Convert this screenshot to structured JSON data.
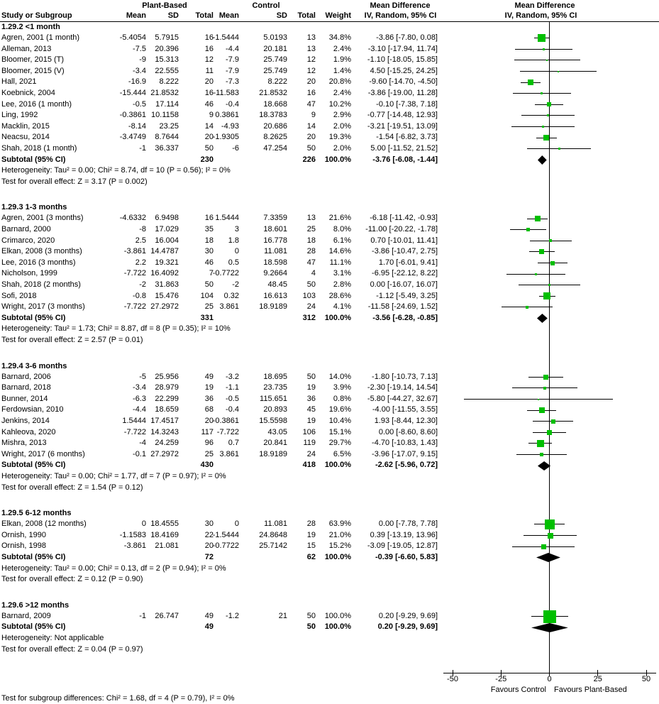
{
  "header": {
    "plant_based": "Plant-Based",
    "control": "Control",
    "mean_difference": "Mean Difference",
    "study_or_subgroup": "Study or Subgroup",
    "mean": "Mean",
    "sd": "SD",
    "total": "Total",
    "weight": "Weight",
    "method": "IV, Random, 95% CI"
  },
  "colors": {
    "marker": "#00bf00",
    "diamond": "#000000",
    "line": "#000000"
  },
  "chart_data": {
    "type": "forest",
    "effect_label": "Mean Difference",
    "method_label": "IV, Random, 95% CI",
    "axis": {
      "min": -50,
      "max": 50,
      "ticks": [
        -50,
        -25,
        0,
        25,
        50
      ],
      "favours_left": "Favours Control",
      "favours_right": "Favours Plant-Based"
    },
    "subgroup_difference_test": "Test for subgroup differences: Chi² = 1.68, df = 4 (P = 0.79), I² = 0%",
    "groups": [
      {
        "label": "1.29.2 <1 month",
        "studies": [
          {
            "study": "Agren, 2001 (1 month)",
            "mean1": "-5.4054",
            "sd1": "5.7915",
            "total1": "16",
            "mean2": "-1.5444",
            "sd2": "5.0193",
            "total2": "13",
            "weight_pct": 34.8,
            "est": -3.86,
            "lo": -7.8,
            "hi": 0.08
          },
          {
            "study": "Alleman, 2013",
            "mean1": "-7.5",
            "sd1": "20.396",
            "total1": "16",
            "mean2": "-4.4",
            "sd2": "20.181",
            "total2": "13",
            "weight_pct": 2.4,
            "est": -3.1,
            "lo": -17.94,
            "hi": 11.74
          },
          {
            "study": "Bloomer, 2015 (T)",
            "mean1": "-9",
            "sd1": "15.313",
            "total1": "12",
            "mean2": "-7.9",
            "sd2": "25.749",
            "total2": "12",
            "weight_pct": 1.9,
            "est": -1.1,
            "lo": -18.05,
            "hi": 15.85
          },
          {
            "study": "Bloomer, 2015 (V)",
            "mean1": "-3.4",
            "sd1": "22.555",
            "total1": "11",
            "mean2": "-7.9",
            "sd2": "25.749",
            "total2": "12",
            "weight_pct": 1.4,
            "est": 4.5,
            "lo": -15.25,
            "hi": 24.25
          },
          {
            "study": "Hall, 2021",
            "mean1": "-16.9",
            "sd1": "8.222",
            "total1": "20",
            "mean2": "-7.3",
            "sd2": "8.222",
            "total2": "20",
            "weight_pct": 20.8,
            "est": -9.6,
            "lo": -14.7,
            "hi": -4.5
          },
          {
            "study": "Koebnick, 2004",
            "mean1": "-15.444",
            "sd1": "21.8532",
            "total1": "16",
            "mean2": "-11.583",
            "sd2": "21.8532",
            "total2": "16",
            "weight_pct": 2.4,
            "est": -3.86,
            "lo": -19.0,
            "hi": 11.28
          },
          {
            "study": "Lee, 2016 (1 month)",
            "mean1": "-0.5",
            "sd1": "17.114",
            "total1": "46",
            "mean2": "-0.4",
            "sd2": "18.668",
            "total2": "47",
            "weight_pct": 10.2,
            "est": -0.1,
            "lo": -7.38,
            "hi": 7.18
          },
          {
            "study": "Ling, 1992",
            "mean1": "-0.3861",
            "sd1": "10.1158",
            "total1": "9",
            "mean2": "0.3861",
            "sd2": "18.3783",
            "total2": "9",
            "weight_pct": 2.9,
            "est": -0.77,
            "lo": -14.48,
            "hi": 12.93
          },
          {
            "study": "Macklin, 2015",
            "mean1": "-8.14",
            "sd1": "23.25",
            "total1": "14",
            "mean2": "-4.93",
            "sd2": "20.686",
            "total2": "14",
            "weight_pct": 2.0,
            "est": -3.21,
            "lo": -19.51,
            "hi": 13.09
          },
          {
            "study": "Neacsu, 2014",
            "mean1": "-3.4749",
            "sd1": "8.7644",
            "total1": "20",
            "mean2": "-1.9305",
            "sd2": "8.2625",
            "total2": "20",
            "weight_pct": 19.3,
            "est": -1.54,
            "lo": -6.82,
            "hi": 3.73
          },
          {
            "study": "Shah, 2018 (1 month)",
            "mean1": "-1",
            "sd1": "36.337",
            "total1": "50",
            "mean2": "-6",
            "sd2": "47.254",
            "total2": "50",
            "weight_pct": 2.0,
            "est": 5.0,
            "lo": -11.52,
            "hi": 21.52
          }
        ],
        "subtotal": {
          "label": "Subtotal (95% CI)",
          "total1": "230",
          "total2": "226",
          "weight_pct": 100.0,
          "est": -3.76,
          "lo": -6.08,
          "hi": -1.44
        },
        "heterogeneity": "Heterogeneity: Tau² = 0.00; Chi² = 8.74, df = 10 (P = 0.56); I² = 0%",
        "overall_effect": "Test for overall effect: Z = 3.17 (P = 0.002)"
      },
      {
        "label": "1.29.3 1-3 months",
        "studies": [
          {
            "study": "Agren, 2001 (3 months)",
            "mean1": "-4.6332",
            "sd1": "6.9498",
            "total1": "16",
            "mean2": "1.5444",
            "sd2": "7.3359",
            "total2": "13",
            "weight_pct": 21.6,
            "est": -6.18,
            "lo": -11.42,
            "hi": -0.93
          },
          {
            "study": "Barnard, 2000",
            "mean1": "-8",
            "sd1": "17.029",
            "total1": "35",
            "mean2": "3",
            "sd2": "18.601",
            "total2": "25",
            "weight_pct": 8.0,
            "est": -11.0,
            "lo": -20.22,
            "hi": -1.78
          },
          {
            "study": "Crimarco, 2020",
            "mean1": "2.5",
            "sd1": "16.004",
            "total1": "18",
            "mean2": "1.8",
            "sd2": "16.778",
            "total2": "18",
            "weight_pct": 6.1,
            "est": 0.7,
            "lo": -10.01,
            "hi": 11.41
          },
          {
            "study": "Elkan, 2008 (3 months)",
            "mean1": "-3.861",
            "sd1": "14.4787",
            "total1": "30",
            "mean2": "0",
            "sd2": "11.081",
            "total2": "28",
            "weight_pct": 14.6,
            "est": -3.86,
            "lo": -10.47,
            "hi": 2.75
          },
          {
            "study": "Lee, 2016 (3 months)",
            "mean1": "2.2",
            "sd1": "19.321",
            "total1": "46",
            "mean2": "0.5",
            "sd2": "18.598",
            "total2": "47",
            "weight_pct": 11.1,
            "est": 1.7,
            "lo": -6.01,
            "hi": 9.41
          },
          {
            "study": "Nicholson, 1999",
            "mean1": "-7.722",
            "sd1": "16.4092",
            "total1": "7",
            "mean2": "-0.7722",
            "sd2": "9.2664",
            "total2": "4",
            "weight_pct": 3.1,
            "est": -6.95,
            "lo": -22.12,
            "hi": 8.22
          },
          {
            "study": "Shah, 2018 (2 months)",
            "mean1": "-2",
            "sd1": "31.863",
            "total1": "50",
            "mean2": "-2",
            "sd2": "48.45",
            "total2": "50",
            "weight_pct": 2.8,
            "est": 0.0,
            "lo": -16.07,
            "hi": 16.07
          },
          {
            "study": "Sofi, 2018",
            "mean1": "-0.8",
            "sd1": "15.476",
            "total1": "104",
            "mean2": "0.32",
            "sd2": "16.613",
            "total2": "103",
            "weight_pct": 28.6,
            "est": -1.12,
            "lo": -5.49,
            "hi": 3.25
          },
          {
            "study": "Wright, 2017 (3 months)",
            "mean1": "-7.722",
            "sd1": "27.2972",
            "total1": "25",
            "mean2": "3.861",
            "sd2": "18.9189",
            "total2": "24",
            "weight_pct": 4.1,
            "est": -11.58,
            "lo": -24.69,
            "hi": 1.52
          }
        ],
        "subtotal": {
          "label": "Subtotal (95% CI)",
          "total1": "331",
          "total2": "312",
          "weight_pct": 100.0,
          "est": -3.56,
          "lo": -6.28,
          "hi": -0.85
        },
        "heterogeneity": "Heterogeneity: Tau² = 1.73; Chi² = 8.87, df = 8 (P = 0.35); I² = 10%",
        "overall_effect": "Test for overall effect: Z = 2.57 (P = 0.01)"
      },
      {
        "label": "1.29.4 3-6 months",
        "studies": [
          {
            "study": "Barnard, 2006",
            "mean1": "-5",
            "sd1": "25.956",
            "total1": "49",
            "mean2": "-3.2",
            "sd2": "18.695",
            "total2": "50",
            "weight_pct": 14.0,
            "est": -1.8,
            "lo": -10.73,
            "hi": 7.13
          },
          {
            "study": "Barnard, 2018",
            "mean1": "-3.4",
            "sd1": "28.979",
            "total1": "19",
            "mean2": "-1.1",
            "sd2": "23.735",
            "total2": "19",
            "weight_pct": 3.9,
            "est": -2.3,
            "lo": -19.14,
            "hi": 14.54
          },
          {
            "study": "Bunner, 2014",
            "mean1": "-6.3",
            "sd1": "22.299",
            "total1": "36",
            "mean2": "-0.5",
            "sd2": "115.651",
            "total2": "36",
            "weight_pct": 0.8,
            "est": -5.8,
            "lo": -44.27,
            "hi": 32.67
          },
          {
            "study": "Ferdowsian, 2010",
            "mean1": "-4.4",
            "sd1": "18.659",
            "total1": "68",
            "mean2": "-0.4",
            "sd2": "20.893",
            "total2": "45",
            "weight_pct": 19.6,
            "est": -4.0,
            "lo": -11.55,
            "hi": 3.55
          },
          {
            "study": "Jenkins, 2014",
            "mean1": "1.5444",
            "sd1": "17.4517",
            "total1": "20",
            "mean2": "-0.3861",
            "sd2": "15.5598",
            "total2": "19",
            "weight_pct": 10.4,
            "est": 1.93,
            "lo": -8.44,
            "hi": 12.3
          },
          {
            "study": "Kahleova, 2020",
            "mean1": "-7.722",
            "sd1": "14.3243",
            "total1": "117",
            "mean2": "-7.722",
            "sd2": "43.05",
            "total2": "106",
            "weight_pct": 15.1,
            "est": 0.0,
            "lo": -8.6,
            "hi": 8.6
          },
          {
            "study": "Mishra, 2013",
            "mean1": "-4",
            "sd1": "24.259",
            "total1": "96",
            "mean2": "0.7",
            "sd2": "20.841",
            "total2": "119",
            "weight_pct": 29.7,
            "est": -4.7,
            "lo": -10.83,
            "hi": 1.43
          },
          {
            "study": "Wright, 2017 (6 months)",
            "mean1": "-0.1",
            "sd1": "27.2972",
            "total1": "25",
            "mean2": "3.861",
            "sd2": "18.9189",
            "total2": "24",
            "weight_pct": 6.5,
            "est": -3.96,
            "lo": -17.07,
            "hi": 9.15
          }
        ],
        "subtotal": {
          "label": "Subtotal (95% CI)",
          "total1": "430",
          "total2": "418",
          "weight_pct": 100.0,
          "est": -2.62,
          "lo": -5.96,
          "hi": 0.72
        },
        "heterogeneity": "Heterogeneity: Tau² = 0.00; Chi² = 1.77, df = 7 (P = 0.97); I² = 0%",
        "overall_effect": "Test for overall effect: Z = 1.54 (P = 0.12)"
      },
      {
        "label": "1.29.5 6-12 months",
        "studies": [
          {
            "study": "Elkan, 2008 (12 months)",
            "mean1": "0",
            "sd1": "18.4555",
            "total1": "30",
            "mean2": "0",
            "sd2": "11.081",
            "total2": "28",
            "weight_pct": 63.9,
            "est": 0.0,
            "lo": -7.78,
            "hi": 7.78
          },
          {
            "study": "Ornish, 1990",
            "mean1": "-1.1583",
            "sd1": "18.4169",
            "total1": "22",
            "mean2": "-1.5444",
            "sd2": "24.8648",
            "total2": "19",
            "weight_pct": 21.0,
            "est": 0.39,
            "lo": -13.19,
            "hi": 13.96
          },
          {
            "study": "Ornish, 1998",
            "mean1": "-3.861",
            "sd1": "21.081",
            "total1": "20",
            "mean2": "-0.7722",
            "sd2": "25.7142",
            "total2": "15",
            "weight_pct": 15.2,
            "est": -3.09,
            "lo": -19.05,
            "hi": 12.87
          }
        ],
        "subtotal": {
          "label": "Subtotal (95% CI)",
          "total1": "72",
          "total2": "62",
          "weight_pct": 100.0,
          "est": -0.39,
          "lo": -6.6,
          "hi": 5.83
        },
        "heterogeneity": "Heterogeneity: Tau² = 0.00; Chi² = 0.13, df = 2 (P = 0.94); I² = 0%",
        "overall_effect": "Test for overall effect: Z = 0.12 (P = 0.90)"
      },
      {
        "label": "1.29.6 >12 months",
        "studies": [
          {
            "study": "Barnard, 2009",
            "mean1": "-1",
            "sd1": "26.747",
            "total1": "49",
            "mean2": "-1.2",
            "sd2": "21",
            "total2": "50",
            "weight_pct": 100.0,
            "est": 0.2,
            "lo": -9.29,
            "hi": 9.69
          }
        ],
        "subtotal": {
          "label": "Subtotal (95% CI)",
          "total1": "49",
          "total2": "50",
          "weight_pct": 100.0,
          "est": 0.2,
          "lo": -9.29,
          "hi": 9.69
        },
        "heterogeneity": "Heterogeneity: Not applicable",
        "overall_effect": "Test for overall effect: Z = 0.04 (P = 0.97)"
      }
    ]
  }
}
